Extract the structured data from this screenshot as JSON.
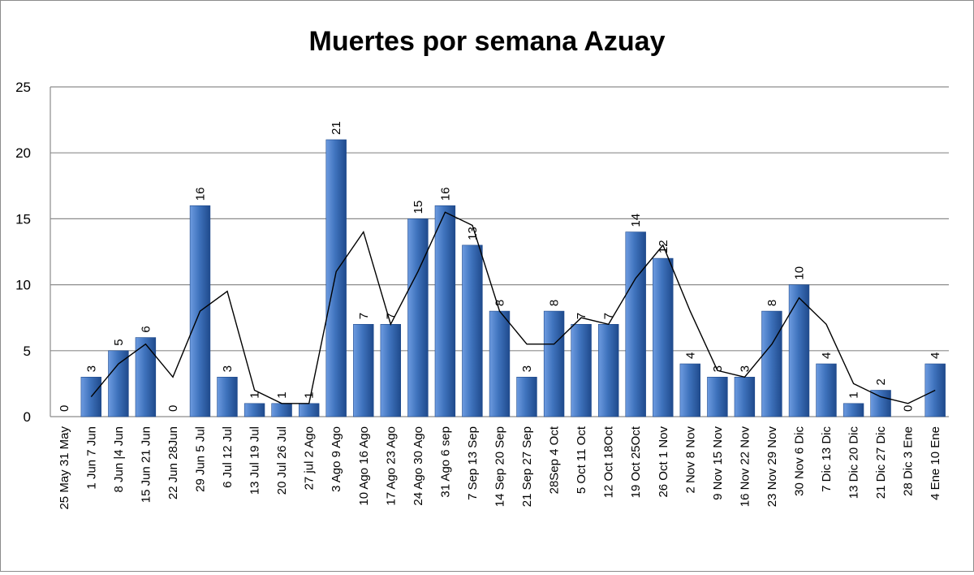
{
  "chart_data": {
    "type": "bar",
    "title": "Muertes por semana Azuay",
    "xlabel": "",
    "ylabel": "",
    "ylim": [
      0,
      25
    ],
    "yticks": [
      0,
      5,
      10,
      15,
      20,
      25
    ],
    "grid": true,
    "legend": "none",
    "colors": {
      "bar": "#3f73bd",
      "bar_light": "#6d9be0",
      "bar_dark": "#1f4a8c",
      "line": "#000000",
      "grid": "#8c8c8c"
    },
    "categories": [
      "25 May 31 May",
      "1 Jun 7 Jun",
      "8 Jun |4 Jun",
      "15 Jun 21 Jun",
      "22 Jun 28Jun",
      "29 Jun 5 Jul",
      "6 Jul 12 Jul",
      "13 Jul 19 Jul",
      "20 Jul 26 Jul",
      "27 jul 2 Ago",
      "3 Ago 9 Ago",
      "10 Ago 16 Ago",
      "17 Ago 23 Ago",
      "24 Ago 30 Ago",
      "31 Ago 6 sep",
      "7 Sep 13 Sep",
      "14 Sep 20 Sep",
      "21 Sep 27 Sep",
      "28Sep 4 Oct",
      "5 Oct 11 Oct",
      "12 Oct 18Oct",
      "19 Oct 25Oct",
      "26 Oct 1 Nov",
      "2 Nov 8 Nov",
      "9 Nov 15 Nov",
      "16 Nov 22 Nov",
      "23 Nov 29 Nov",
      "30 Nov 6 Dic",
      "7 Dic 13 Dic",
      "13 Dic 20 Dic",
      "21 Dic 27 Dic",
      "28 Dic 3 Ene",
      "4 Ene 10 Ene"
    ],
    "series": [
      {
        "type": "bar",
        "values": [
          0,
          3,
          5,
          6,
          0,
          16,
          3,
          1,
          1,
          1,
          21,
          7,
          7,
          15,
          16,
          13,
          8,
          3,
          8,
          7,
          7,
          14,
          12,
          4,
          3,
          3,
          8,
          10,
          4,
          1,
          2,
          0,
          4
        ]
      },
      {
        "type": "line",
        "values": [
          null,
          1.5,
          4,
          5.5,
          3,
          8,
          9.5,
          2,
          1,
          1,
          11,
          14,
          7,
          11,
          15.5,
          14.5,
          8,
          5.5,
          5.5,
          7.5,
          7,
          10.5,
          13,
          8,
          3.5,
          3,
          5.5,
          9,
          7,
          2.5,
          1.5,
          1,
          2
        ]
      }
    ]
  }
}
